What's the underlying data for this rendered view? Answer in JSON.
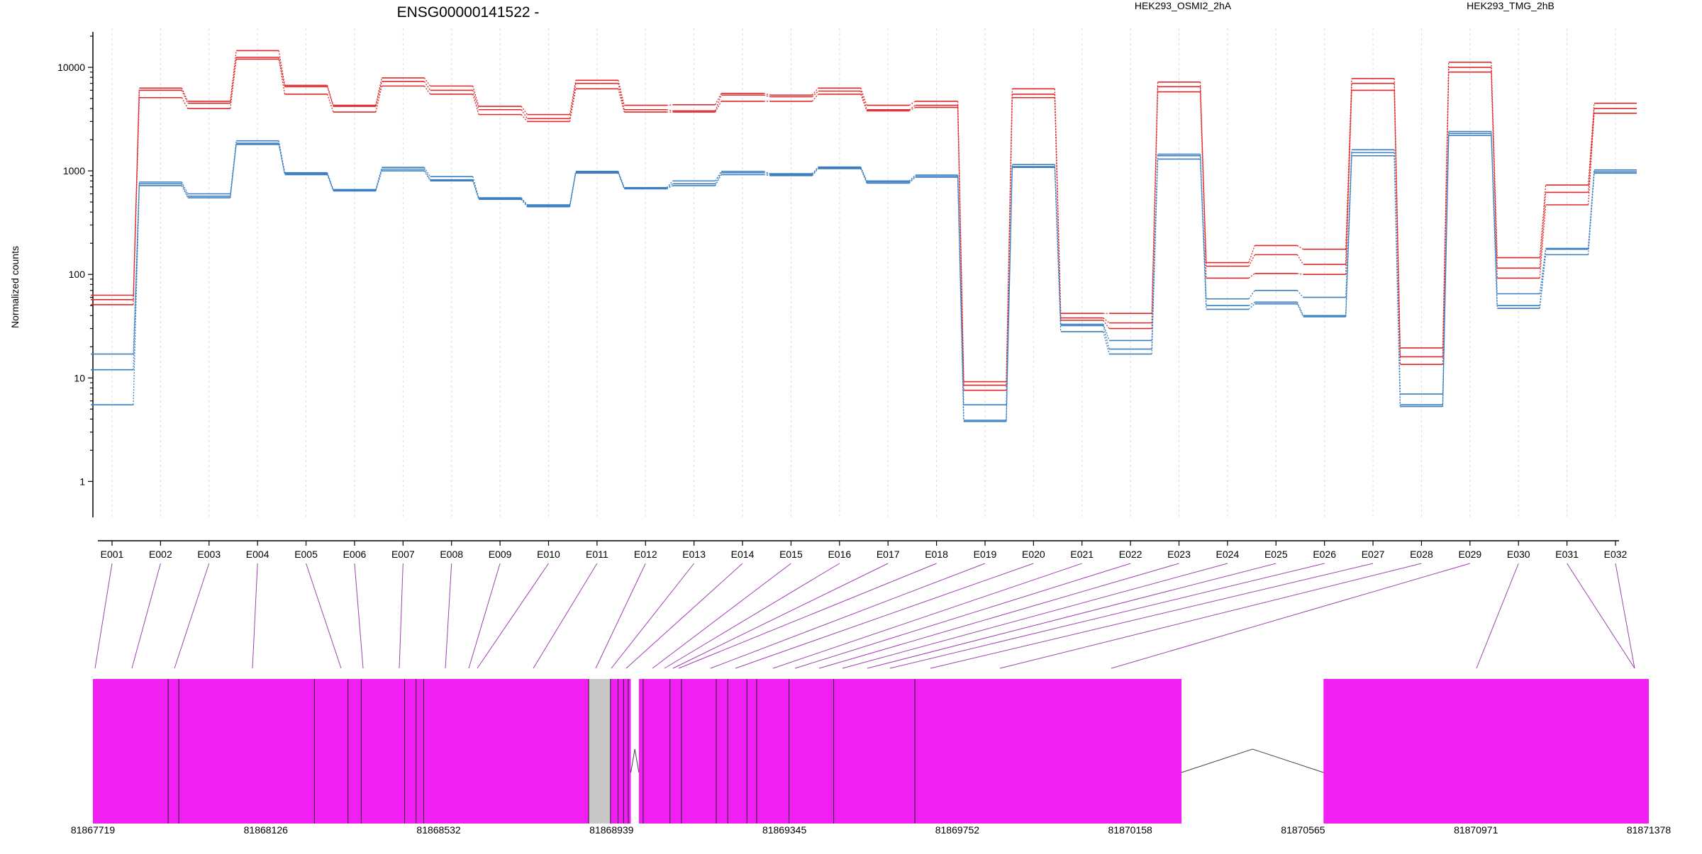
{
  "header": {
    "title": "ENSG00000141522 -",
    "legend": [
      {
        "label": "HEK293_OSMI2_2hA",
        "color": "#e0282a"
      },
      {
        "label": "HEK293_TMG_2hB",
        "color": "#3a7fc1"
      }
    ]
  },
  "colors": {
    "red": "#e0282a",
    "blue": "#3a7fc1",
    "exon": "#f21ff2",
    "gap": "#c8c8c8",
    "link": "#a040b0"
  },
  "chart_data": {
    "type": "line",
    "ylabel": "Normalized counts",
    "yscale": "log",
    "ylim": [
      0.45,
      22000
    ],
    "yticks": [
      1,
      10,
      100,
      1000,
      10000
    ],
    "categories": [
      "E001",
      "E002",
      "E003",
      "E004",
      "E005",
      "E006",
      "E007",
      "E008",
      "E009",
      "E010",
      "E011",
      "E012",
      "E013",
      "E014",
      "E015",
      "E016",
      "E017",
      "E018",
      "E019",
      "E020",
      "E021",
      "E022",
      "E023",
      "E024",
      "E025",
      "E026",
      "E027",
      "E028",
      "E029",
      "E030",
      "E031",
      "E032"
    ],
    "series": [
      {
        "group": "HEK293_OSMI2_2hA",
        "color": "#e0282a",
        "values": [
          63,
          6300,
          4700,
          14500,
          6700,
          4300,
          7900,
          6600,
          4200,
          3500,
          7500,
          4300,
          4350,
          5600,
          5400,
          6300,
          4300,
          4700,
          9.2,
          6200,
          42,
          42,
          7200,
          130,
          190,
          175,
          7800,
          19.5,
          11200,
          145,
          730,
          4500
        ]
      },
      {
        "group": "HEK293_OSMI2_2hA",
        "color": "#e0282a",
        "values": [
          57,
          6000,
          4500,
          12500,
          6500,
          4200,
          7300,
          6000,
          3900,
          3200,
          7000,
          3900,
          3800,
          5400,
          5200,
          5900,
          3900,
          4300,
          8.5,
          5500,
          38,
          34,
          6500,
          120,
          155,
          125,
          7000,
          16,
          10000,
          115,
          620,
          4000
        ]
      },
      {
        "group": "HEK293_OSMI2_2hA",
        "color": "#e0282a",
        "values": [
          51,
          5100,
          4000,
          12000,
          5500,
          3700,
          6600,
          5500,
          3500,
          3000,
          6200,
          3700,
          3700,
          4700,
          4700,
          5500,
          3800,
          4100,
          7.6,
          5100,
          36,
          30,
          5800,
          92,
          102,
          100,
          6000,
          13.5,
          9000,
          92,
          470,
          3600
        ]
      },
      {
        "group": "HEK293_TMG_2hB",
        "color": "#3a7fc1",
        "values": [
          17,
          780,
          600,
          1950,
          960,
          660,
          1080,
          880,
          550,
          470,
          990,
          690,
          800,
          990,
          940,
          1090,
          800,
          910,
          5.5,
          1150,
          33,
          23,
          1450,
          58,
          70,
          60,
          1600,
          7,
          2400,
          65,
          178,
          1020
        ]
      },
      {
        "group": "HEK293_TMG_2hB",
        "color": "#3a7fc1",
        "values": [
          12,
          750,
          570,
          1850,
          940,
          650,
          1040,
          820,
          540,
          460,
          970,
          680,
          750,
          960,
          920,
          1070,
          780,
          880,
          3.9,
          1100,
          32,
          19,
          1400,
          50,
          54,
          40,
          1500,
          5.5,
          2300,
          50,
          175,
          980
        ]
      },
      {
        "group": "HEK293_TMG_2hB",
        "color": "#3a7fc1",
        "values": [
          5.5,
          720,
          550,
          1800,
          920,
          640,
          1000,
          800,
          530,
          450,
          950,
          670,
          720,
          920,
          900,
          1050,
          760,
          870,
          3.8,
          1080,
          28,
          17,
          1300,
          46,
          52,
          39,
          1400,
          5.3,
          2200,
          47,
          155,
          950
        ]
      }
    ],
    "genomic_axis": {
      "range": [
        81867719,
        81871378
      ],
      "tick_labels": [
        "81867719",
        "81868126",
        "81868532",
        "81868939",
        "81869345",
        "81869752",
        "81870158",
        "81870565",
        "81870971",
        "81871378"
      ]
    }
  }
}
